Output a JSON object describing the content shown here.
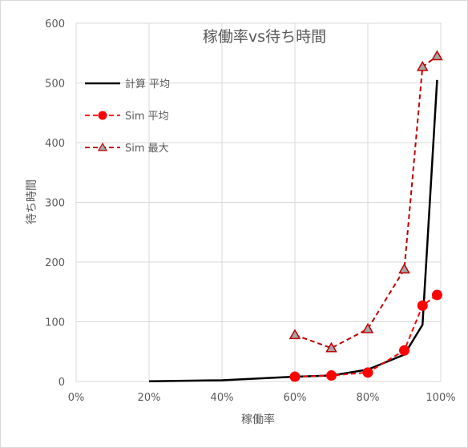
{
  "chart_data": {
    "type": "scatter",
    "title": "稼働率vs待ち時間",
    "xlabel": "稼働率",
    "ylabel": "待ち時間",
    "xlim": [
      0,
      1
    ],
    "ylim": [
      0,
      600
    ],
    "x_ticks": [
      "0%",
      "20%",
      "40%",
      "60%",
      "80%",
      "100%"
    ],
    "y_ticks": [
      "0",
      "100",
      "200",
      "300",
      "400",
      "500",
      "600"
    ],
    "grid": "vertical and horizontal",
    "legend_position": "top-left",
    "series": [
      {
        "name": "計算 平均",
        "style": "solid-line",
        "color": "#000000",
        "x": [
          0.2,
          0.4,
          0.6,
          0.7,
          0.8,
          0.9,
          0.95,
          0.99
        ],
        "y": [
          0.4,
          2,
          8,
          10,
          20,
          45,
          95,
          505
        ]
      },
      {
        "name": "Sim 平均",
        "style": "dashed-circle",
        "color": "#ff0000",
        "x": [
          0.6,
          0.7,
          0.8,
          0.9,
          0.95,
          0.99
        ],
        "y": [
          8,
          10,
          15,
          52,
          127,
          145
        ]
      },
      {
        "name": "Sim 最大",
        "style": "dashed-triangle",
        "color": "#c00000",
        "marker_color": "#a5a5a5",
        "x": [
          0.6,
          0.7,
          0.8,
          0.9,
          0.95,
          0.99
        ],
        "y": [
          78,
          56,
          88,
          188,
          527,
          545
        ]
      }
    ]
  }
}
